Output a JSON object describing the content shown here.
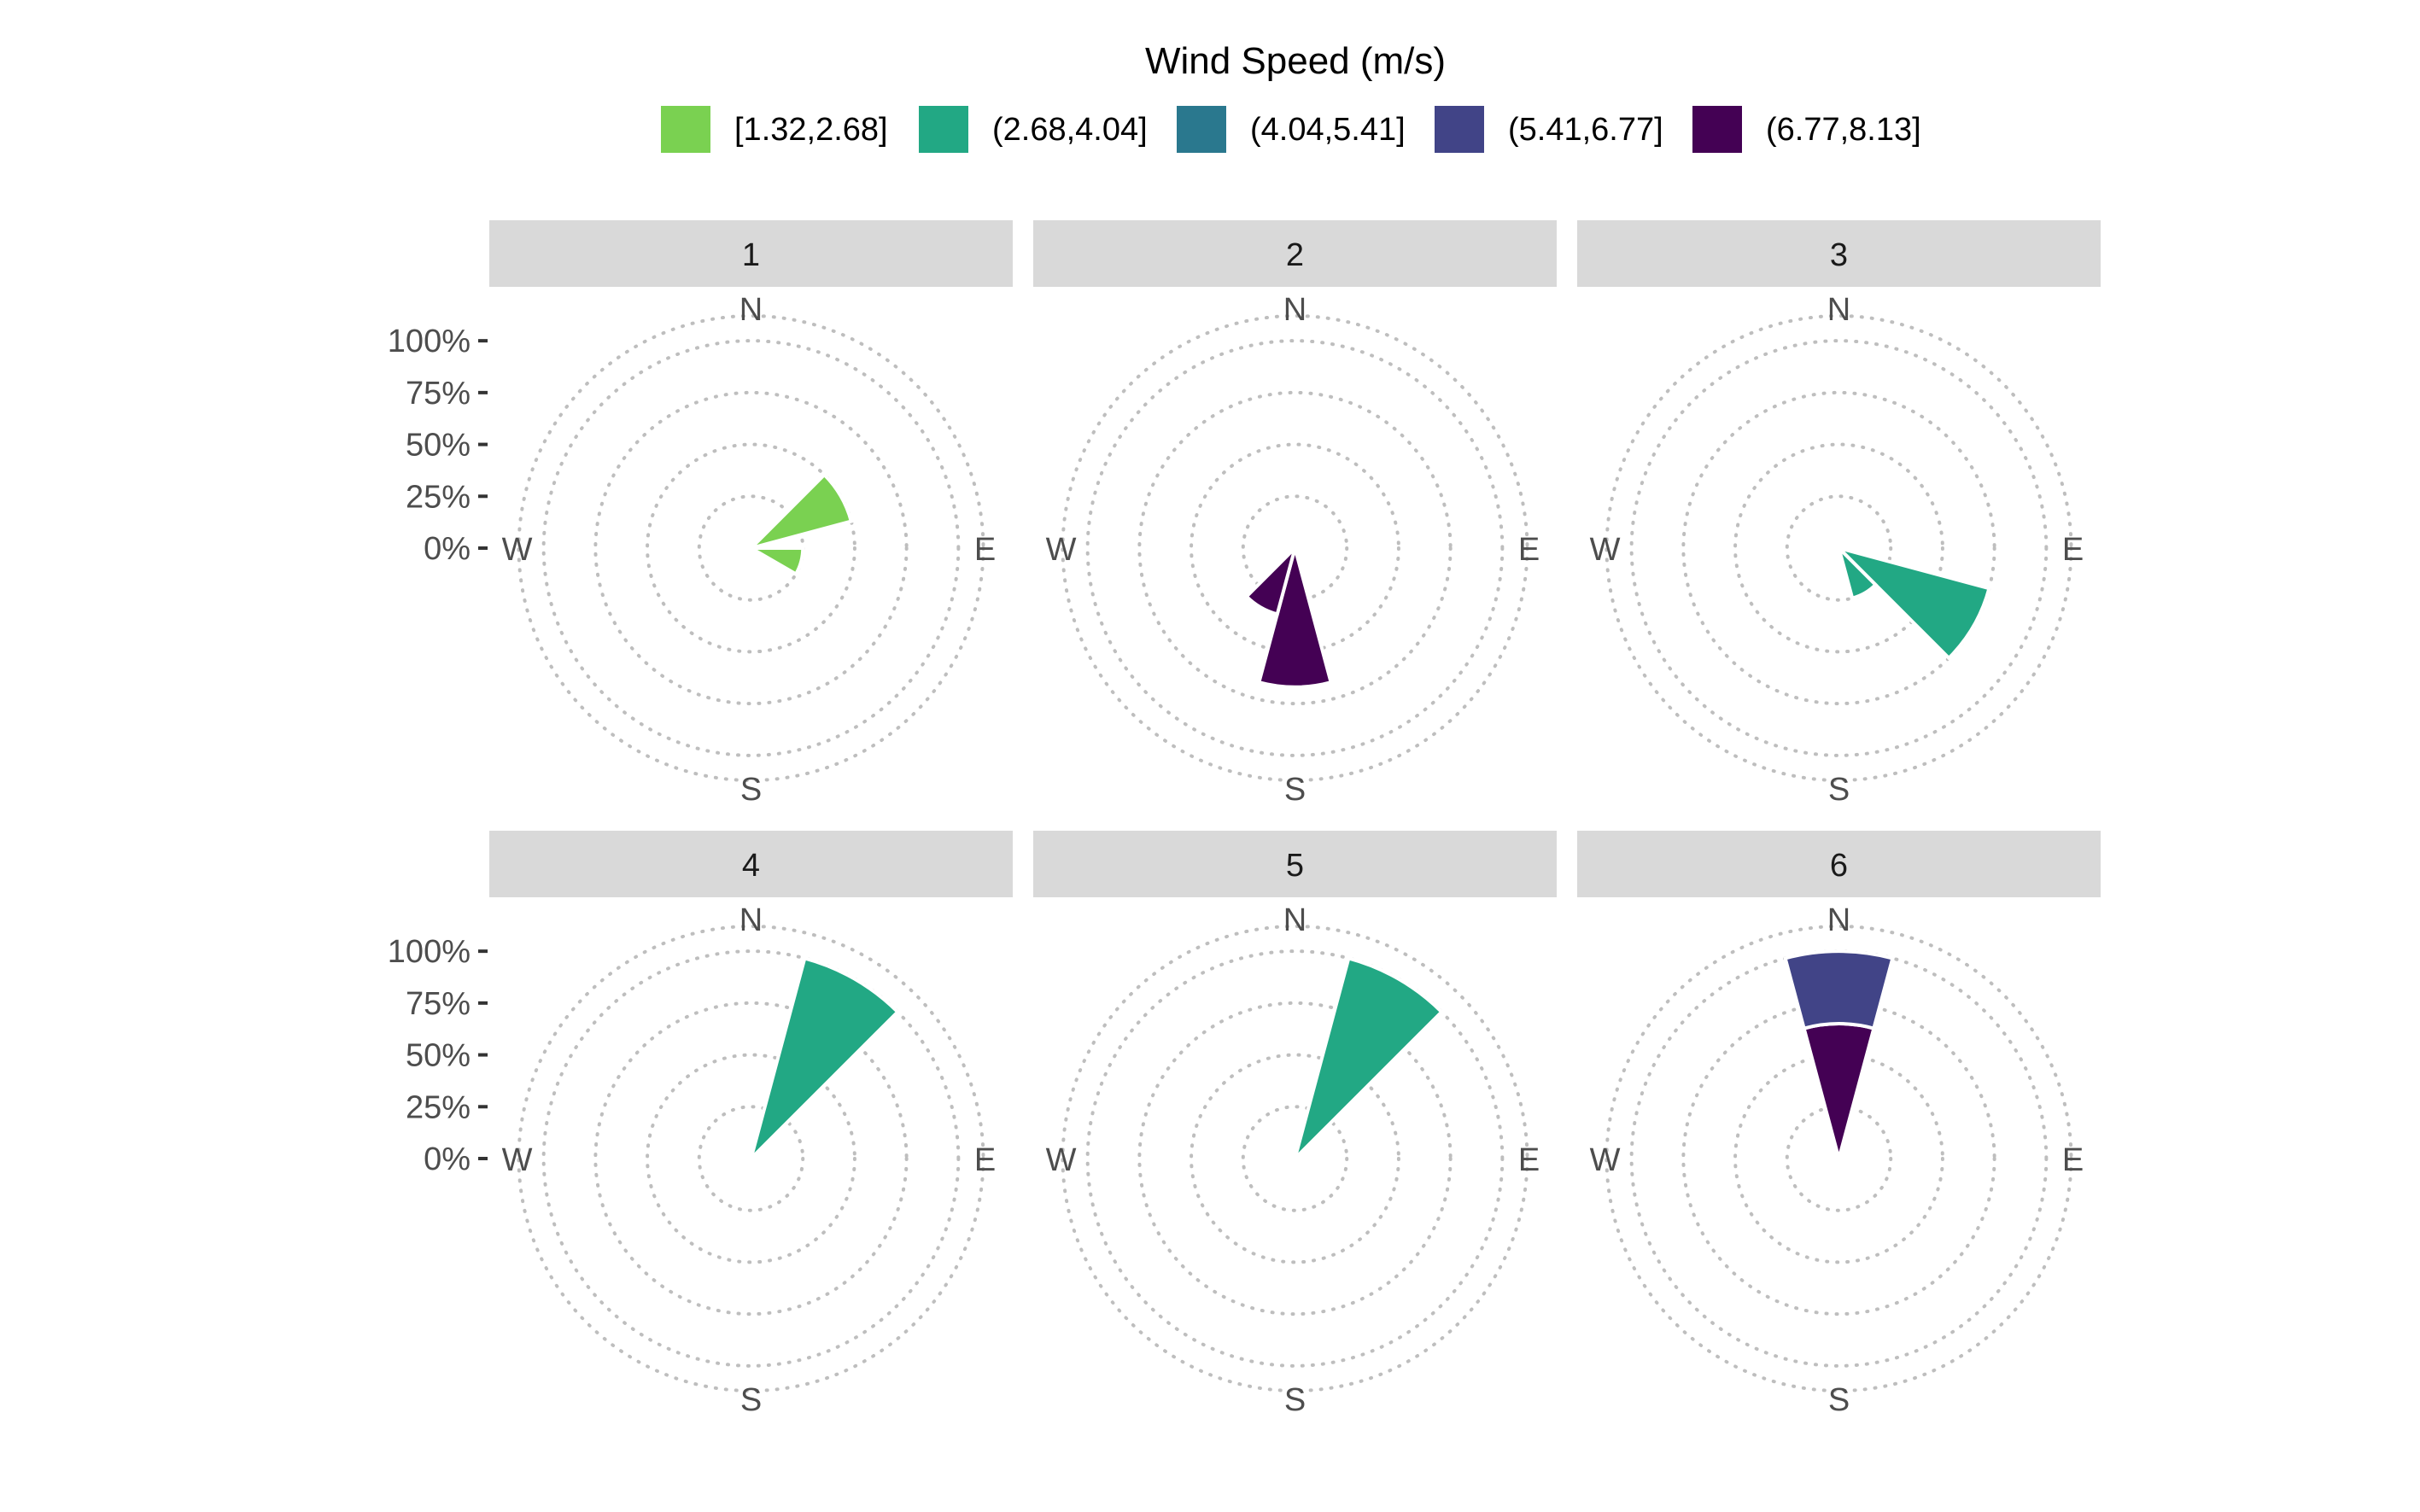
{
  "chart_data": {
    "type": "polar-bar",
    "legend": {
      "title": "Wind Speed (m/s)",
      "position": "top",
      "entries": [
        {
          "label": "[1.32,2.68]",
          "color": "#7AD151"
        },
        {
          "label": "(2.68,4.04]",
          "color": "#22A884"
        },
        {
          "label": "(4.04,5.41]",
          "color": "#2A788E"
        },
        {
          "label": "(5.41,6.77]",
          "color": "#414487"
        },
        {
          "label": "(6.77,8.13]",
          "color": "#440154"
        }
      ]
    },
    "radial_axis": {
      "ticks": [
        "0%",
        "25%",
        "50%",
        "75%",
        "100%"
      ],
      "tick_values": [
        0,
        25,
        50,
        75,
        100
      ],
      "max": 112
    },
    "direction_labels": [
      "N",
      "E",
      "S",
      "W"
    ],
    "grid": "dotted",
    "panels": [
      {
        "label": "1",
        "bars": [
          {
            "dir": 60,
            "width": 30,
            "segments": [
              {
                "cls": 0,
                "value": 50
              }
            ]
          },
          {
            "dir": 105,
            "width": 30,
            "segments": [
              {
                "cls": 0,
                "value": 25
              }
            ]
          }
        ]
      },
      {
        "label": "2",
        "bars": [
          {
            "dir": 180,
            "width": 30,
            "segments": [
              {
                "cls": 4,
                "value": 67
              }
            ]
          },
          {
            "dir": 210,
            "width": 30,
            "segments": [
              {
                "cls": 4,
                "value": 33
              }
            ]
          }
        ]
      },
      {
        "label": "3",
        "bars": [
          {
            "dir": 120,
            "width": 30,
            "segments": [
              {
                "cls": 1,
                "value": 75
              }
            ]
          },
          {
            "dir": 150,
            "width": 30,
            "segments": [
              {
                "cls": 1,
                "value": 25
              }
            ]
          }
        ]
      },
      {
        "label": "4",
        "bars": [
          {
            "dir": 30,
            "width": 30,
            "segments": [
              {
                "cls": 1,
                "value": 100
              }
            ]
          }
        ]
      },
      {
        "label": "5",
        "bars": [
          {
            "dir": 30,
            "width": 30,
            "segments": [
              {
                "cls": 1,
                "value": 100
              }
            ]
          }
        ]
      },
      {
        "label": "6",
        "bars": [
          {
            "dir": 0,
            "width": 30,
            "segments": [
              {
                "cls": 4,
                "value": 65
              },
              {
                "cls": 3,
                "value": 35
              }
            ]
          }
        ]
      }
    ]
  }
}
